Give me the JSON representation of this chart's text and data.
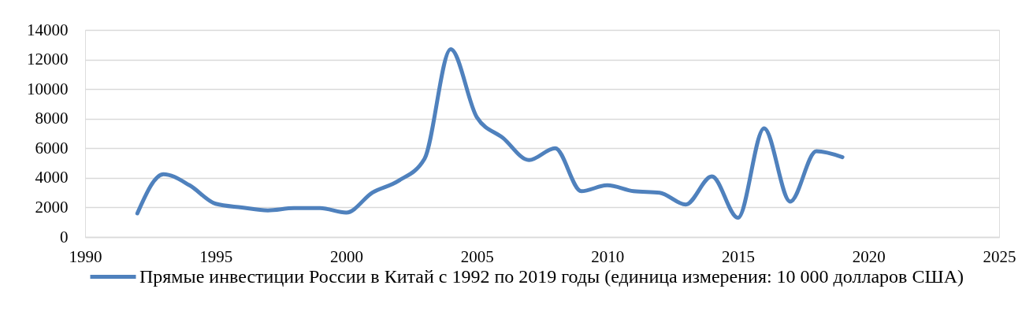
{
  "chart_data": {
    "type": "line",
    "x": [
      1992,
      1993,
      1994,
      1995,
      1996,
      1997,
      1998,
      1999,
      2000,
      2001,
      2002,
      2003,
      2004,
      2005,
      2006,
      2007,
      2008,
      2009,
      2010,
      2011,
      2012,
      2013,
      2014,
      2015,
      2016,
      2017,
      2018,
      2019
    ],
    "series": [
      {
        "name": "Прямые инвестиции России в Китай с 1992 по 2019 годы (единица измерения: 10 000 долларов США)",
        "color": "#4f81bd",
        "values": [
          1600,
          4250,
          3500,
          2250,
          2000,
          1800,
          1950,
          1950,
          1650,
          3000,
          3800,
          5300,
          12700,
          8100,
          6700,
          5200,
          6000,
          3100,
          3500,
          3100,
          3000,
          2200,
          4100,
          1300,
          7350,
          2400,
          5800,
          5400
        ]
      }
    ],
    "xlim": [
      1990,
      2025
    ],
    "xticks": [
      1990,
      1995,
      2000,
      2005,
      2010,
      2015,
      2020,
      2025
    ],
    "ylim": [
      0,
      14000
    ],
    "yticks": [
      0,
      2000,
      4000,
      6000,
      8000,
      10000,
      12000,
      14000
    ],
    "grid": "y",
    "legend": "bottom",
    "line_style": "solid"
  }
}
